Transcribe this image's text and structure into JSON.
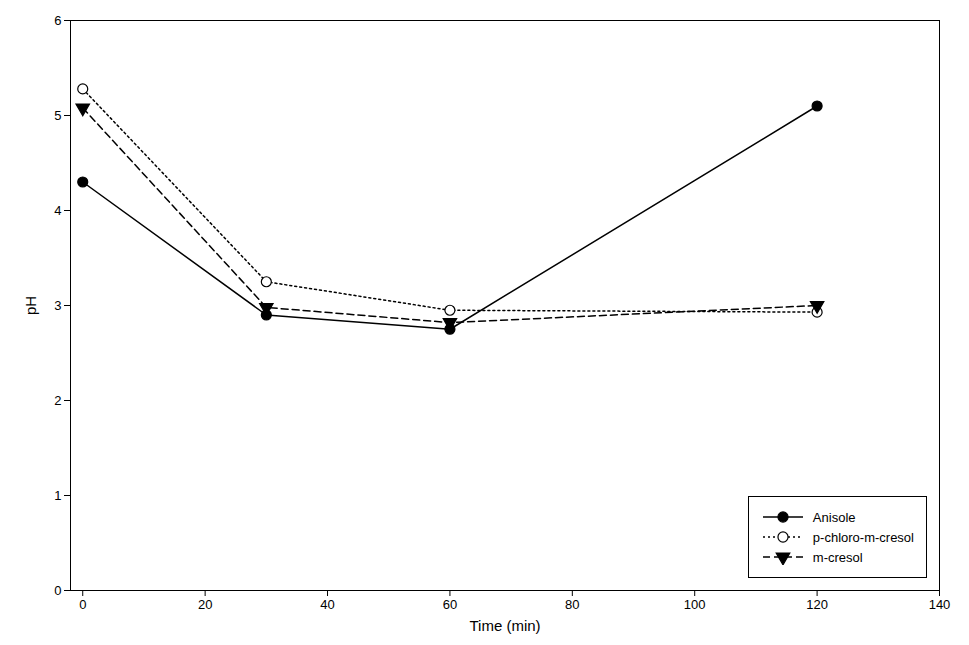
{
  "chart_data": {
    "type": "line",
    "xlabel": "Time (min)",
    "ylabel": "pH",
    "x": [
      0,
      30,
      60,
      120
    ],
    "series": [
      {
        "name": "Anisole",
        "color": "black",
        "values": [
          4.3,
          2.9,
          2.75,
          5.1
        ],
        "marker": "circle",
        "line_style": "solid"
      },
      {
        "name": "p-chloro-m-cresol",
        "color": "black",
        "values": [
          5.28,
          3.25,
          2.95,
          2.93
        ],
        "marker": "circle_open",
        "line_style": "dotted"
      },
      {
        "name": "m-cresol",
        "color": "black",
        "values": [
          5.08,
          2.98,
          2.82,
          3.0
        ],
        "marker": "triangle_down",
        "line_style": "dashed"
      }
    ],
    "xlim": [
      -2,
      140
    ],
    "ylim": [
      0,
      6
    ],
    "xticks": [
      0,
      20,
      40,
      60,
      80,
      100,
      120,
      140
    ],
    "yticks": [
      0,
      1,
      2,
      3,
      4,
      5,
      6
    ],
    "legend": "lower right"
  }
}
